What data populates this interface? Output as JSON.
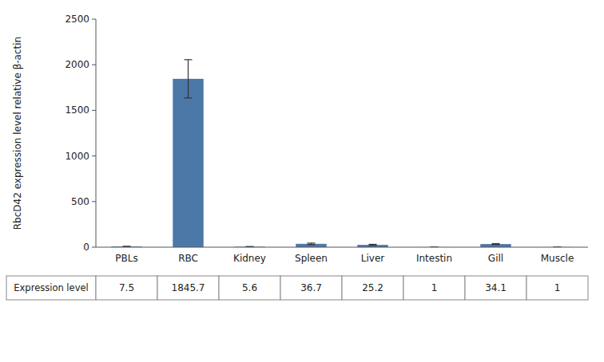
{
  "chart_data": {
    "type": "bar",
    "categories": [
      "PBLs",
      "RBC",
      "Kidney",
      "Spleen",
      "Liver",
      "Intestin",
      "Gill",
      "Muscle"
    ],
    "values": [
      7.5,
      1845.7,
      5.6,
      36.7,
      25.2,
      1,
      34.1,
      1
    ],
    "errors": [
      2.0,
      210.0,
      1.0,
      8.0,
      6.0,
      0.3,
      5.0,
      0.3
    ],
    "color": "#4c78a8",
    "ylabel": "RbcD42 expression level relative β-actin",
    "ylim": [
      0,
      2500
    ],
    "yticks": [
      0,
      500,
      1000,
      1500,
      2000,
      2500
    ],
    "grid": false,
    "data_labels": true,
    "table_row_label": "Expression level"
  }
}
